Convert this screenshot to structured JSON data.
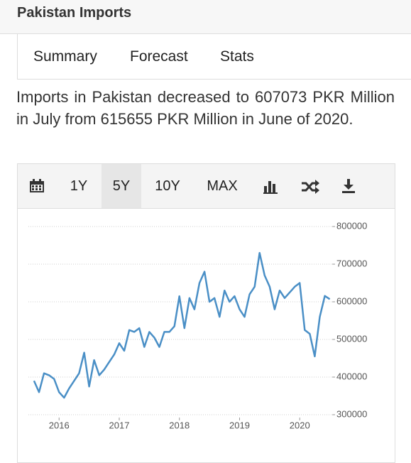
{
  "header": {
    "title": "Pakistan Imports"
  },
  "tabs": [
    "Summary",
    "Forecast",
    "Stats"
  ],
  "description": "Imports in Pakistan decreased to 607073 PKR Million in July from 615655 PKR Million in June of 2020.",
  "toolbar": {
    "ranges": [
      "1Y",
      "5Y",
      "10Y",
      "MAX"
    ],
    "active": "5Y"
  },
  "chart_data": {
    "type": "line",
    "color": "#4a8fc6",
    "x": [
      2015.583,
      2015.667,
      2015.75,
      2015.833,
      2015.917,
      2016,
      2016.083,
      2016.167,
      2016.25,
      2016.333,
      2016.417,
      2016.5,
      2016.583,
      2016.667,
      2016.75,
      2016.833,
      2016.917,
      2017,
      2017.083,
      2017.167,
      2017.25,
      2017.333,
      2017.417,
      2017.5,
      2017.583,
      2017.667,
      2017.75,
      2017.833,
      2017.917,
      2018,
      2018.083,
      2018.167,
      2018.25,
      2018.333,
      2018.417,
      2018.5,
      2018.583,
      2018.667,
      2018.75,
      2018.833,
      2018.917,
      2019,
      2019.083,
      2019.167,
      2019.25,
      2019.333,
      2019.417,
      2019.5,
      2019.583,
      2019.667,
      2019.75,
      2019.833,
      2019.917,
      2020,
      2020.083,
      2020.167,
      2020.25,
      2020.333,
      2020.417,
      2020.5
    ],
    "values": [
      390000,
      360000,
      410000,
      405000,
      395000,
      360000,
      345000,
      370000,
      390000,
      410000,
      465000,
      375000,
      445000,
      405000,
      420000,
      440000,
      460000,
      490000,
      470000,
      525000,
      520000,
      530000,
      480000,
      520000,
      505000,
      480000,
      520000,
      520000,
      535000,
      615000,
      530000,
      610000,
      580000,
      650000,
      680000,
      600000,
      610000,
      560000,
      630000,
      600000,
      615000,
      580000,
      560000,
      620000,
      640000,
      730000,
      670000,
      640000,
      580000,
      630000,
      610000,
      625000,
      640000,
      650000,
      525000,
      515000,
      455000,
      560000,
      615655,
      607073
    ],
    "xlim": [
      2015.49,
      2020.54
    ],
    "xticks": [
      2016,
      2017,
      2018,
      2019,
      2020
    ],
    "ylim": [
      300000,
      800000
    ],
    "yticks": [
      300000,
      400000,
      500000,
      600000,
      700000,
      800000
    ],
    "grid": true
  }
}
